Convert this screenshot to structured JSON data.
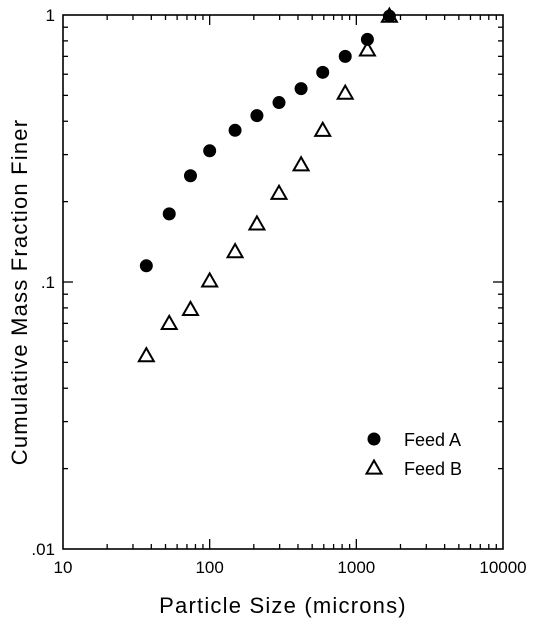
{
  "chart_data": {
    "type": "scatter",
    "title": "",
    "xlabel": "Particle Size (microns)",
    "ylabel": "Cumulative Mass Fraction Finer",
    "xscale": "log",
    "yscale": "log",
    "xlim": [
      10,
      10000
    ],
    "ylim": [
      0.01,
      1
    ],
    "x_ticks": [
      {
        "value": 10,
        "label": "10"
      },
      {
        "value": 100,
        "label": "100"
      },
      {
        "value": 1000,
        "label": "1000"
      },
      {
        "value": 10000,
        "label": "10000"
      }
    ],
    "y_ticks": [
      {
        "value": 0.01,
        "label": ".01"
      },
      {
        "value": 0.1,
        "label": ".1"
      },
      {
        "value": 1,
        "label": "1"
      }
    ],
    "grid": false,
    "legend_position": "bottom-right",
    "series": [
      {
        "name": "Feed A",
        "marker": "filled-circle",
        "color": "#000000",
        "points": [
          [
            37,
            0.115
          ],
          [
            53,
            0.18
          ],
          [
            74,
            0.25
          ],
          [
            100,
            0.31
          ],
          [
            149,
            0.37
          ],
          [
            210,
            0.42
          ],
          [
            297,
            0.47
          ],
          [
            420,
            0.53
          ],
          [
            590,
            0.61
          ],
          [
            840,
            0.7
          ],
          [
            1190,
            0.81
          ],
          [
            1680,
            0.99
          ]
        ]
      },
      {
        "name": "Feed B",
        "marker": "open-triangle",
        "color": "#000000",
        "points": [
          [
            37,
            0.053
          ],
          [
            53,
            0.07
          ],
          [
            74,
            0.079
          ],
          [
            100,
            0.101
          ],
          [
            149,
            0.13
          ],
          [
            210,
            0.165
          ],
          [
            297,
            0.215
          ],
          [
            420,
            0.275
          ],
          [
            590,
            0.37
          ],
          [
            840,
            0.51
          ],
          [
            1190,
            0.74
          ],
          [
            1680,
            0.99
          ]
        ]
      }
    ]
  }
}
